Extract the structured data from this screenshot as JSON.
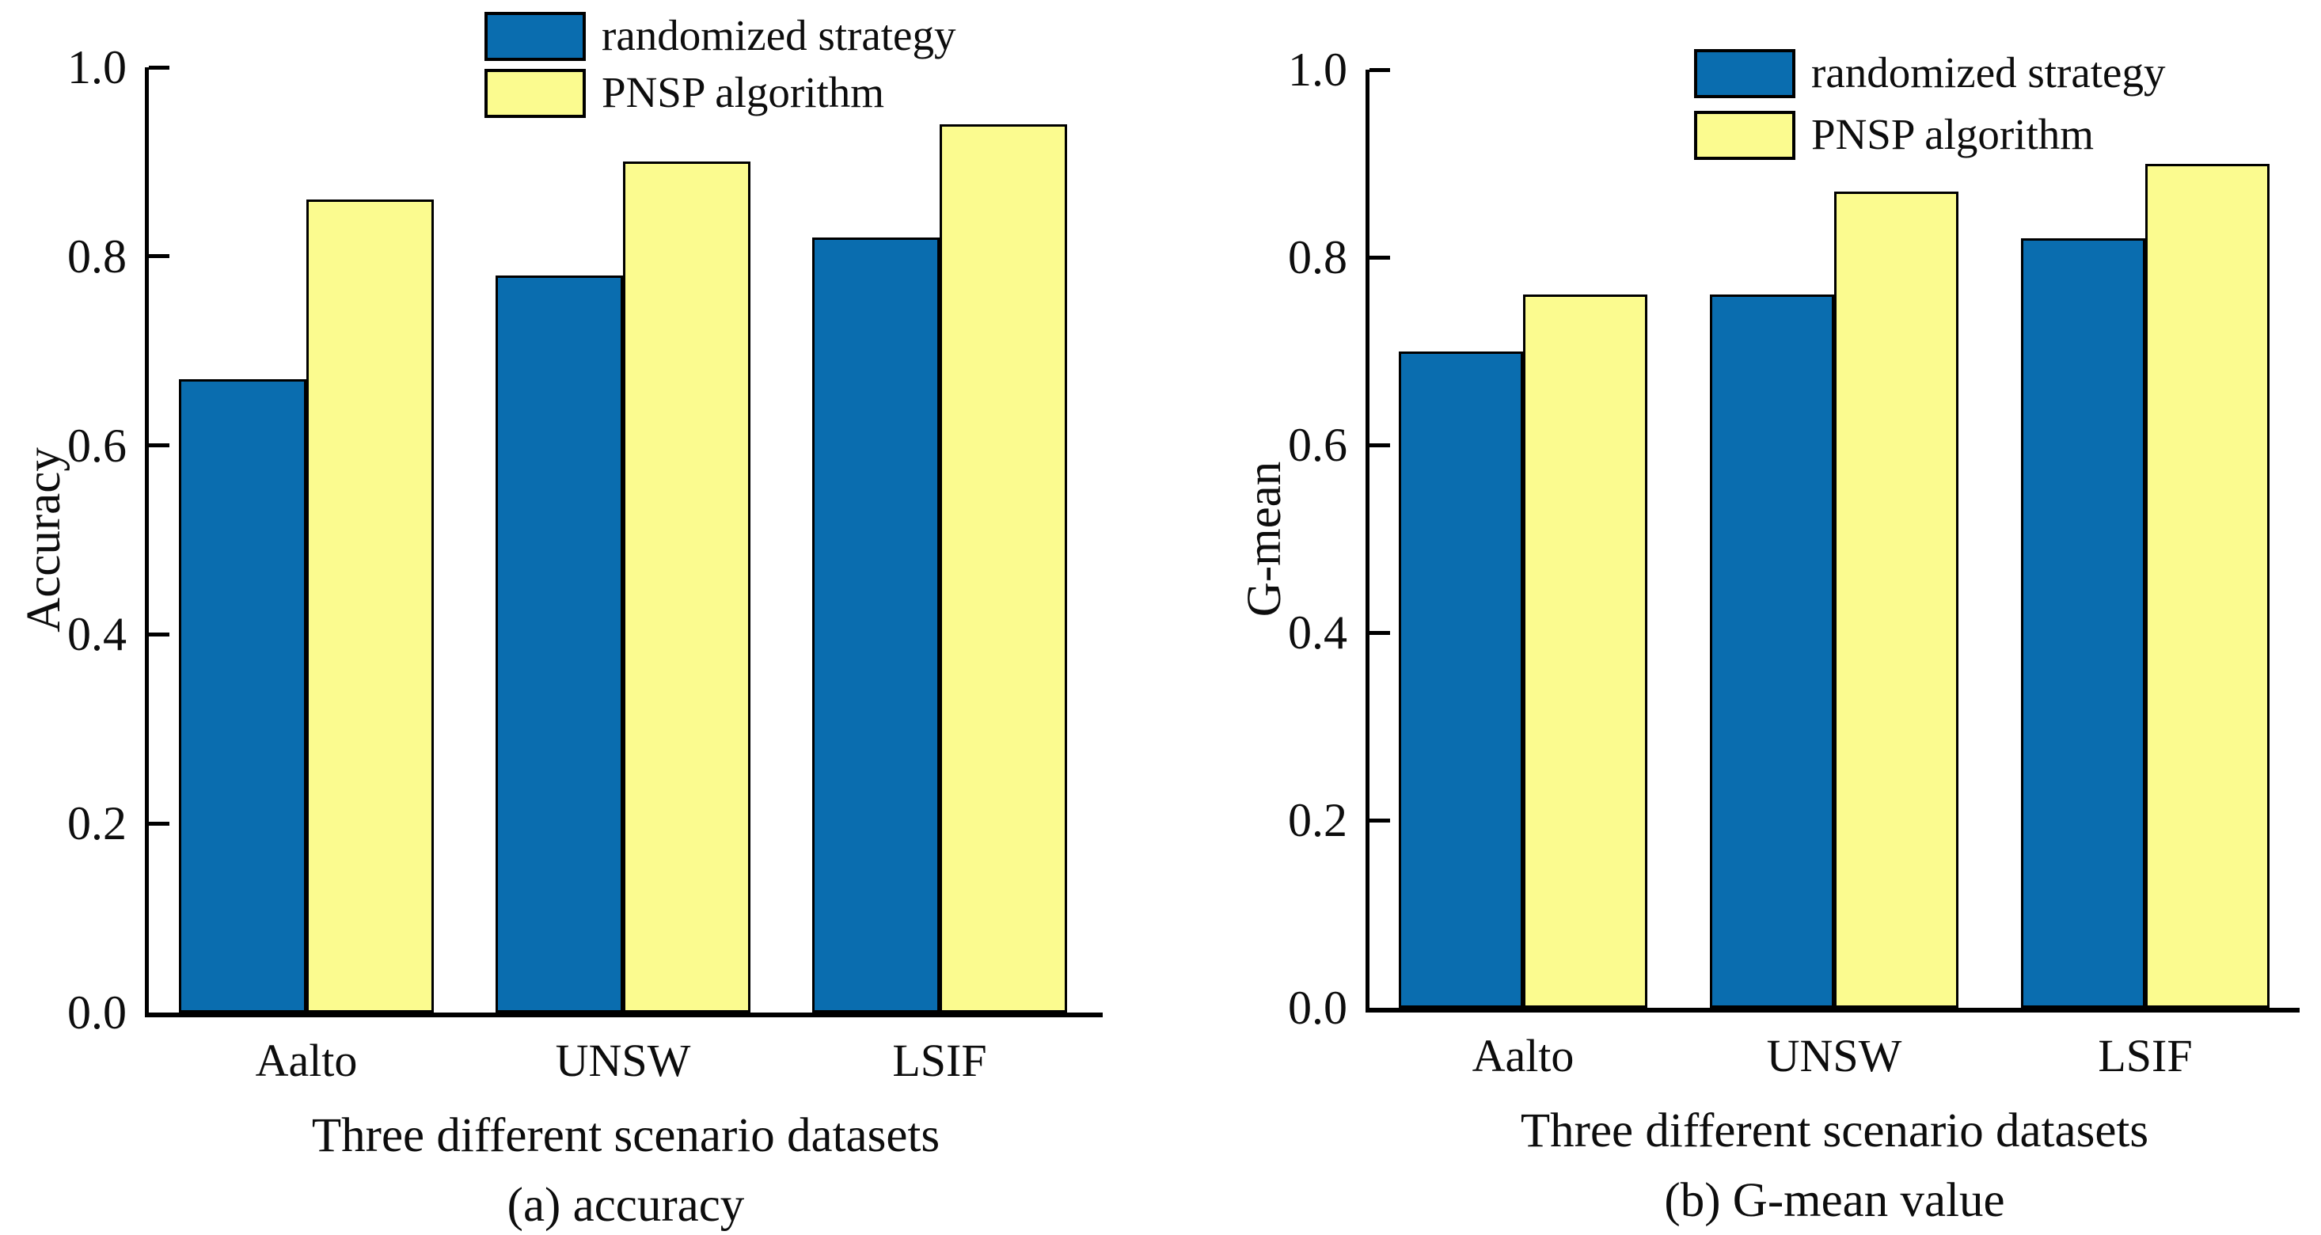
{
  "figure": {
    "background_color": "#ffffff",
    "text_color": "#0d0d0d",
    "axis_color": "#000000",
    "bar_border_color": "#000000",
    "series_colors": {
      "randomized strategy": "#0a6daf",
      "PNSP algorithm": "#fbfb8f"
    }
  },
  "legend": {
    "items": [
      {
        "label": "randomized strategy",
        "color": "#0a6daf"
      },
      {
        "label": "PNSP algorithm",
        "color": "#fbfb8f"
      }
    ]
  },
  "chart_data": [
    {
      "type": "bar",
      "title": "",
      "categories": [
        "Aalto",
        "UNSW",
        "LSIF"
      ],
      "series": [
        {
          "name": "randomized strategy",
          "values": [
            0.67,
            0.78,
            0.82
          ]
        },
        {
          "name": "PNSP algorithm",
          "values": [
            0.86,
            0.9,
            0.94
          ]
        }
      ],
      "xlabel": "Three different scenario datasets",
      "ylabel": "Accuracy",
      "caption": "(a) accuracy",
      "ylim": [
        0.0,
        1.0
      ],
      "ytick_labels": [
        "0.0",
        "0.2",
        "0.4",
        "0.6",
        "0.8",
        "1.0"
      ],
      "legend_position": "top-inside",
      "grid": false
    },
    {
      "type": "bar",
      "title": "",
      "categories": [
        "Aalto",
        "UNSW",
        "LSIF"
      ],
      "series": [
        {
          "name": "randomized strategy",
          "values": [
            0.7,
            0.76,
            0.82
          ]
        },
        {
          "name": "PNSP algorithm",
          "values": [
            0.76,
            0.87,
            0.9
          ]
        }
      ],
      "xlabel": "Three different scenario datasets",
      "ylabel": "G-mean",
      "caption": "(b) G-mean value",
      "ylim": [
        0.0,
        1.0
      ],
      "ytick_labels": [
        "0.0",
        "0.2",
        "0.4",
        "0.6",
        "0.8",
        "1.0"
      ],
      "legend_position": "top-inside",
      "grid": false
    }
  ]
}
